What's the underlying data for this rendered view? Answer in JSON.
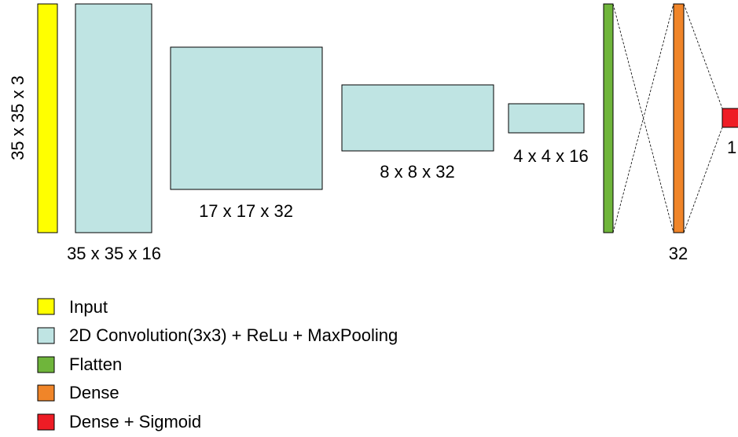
{
  "layers": [
    {
      "label": "35 x 35 x 3"
    },
    {
      "label": "35 x 35 x 16"
    },
    {
      "label": "17 x 17 x 32"
    },
    {
      "label": "8 x 8 x 32"
    },
    {
      "label": "4 x 4 x 16"
    },
    {
      "label": "32"
    },
    {
      "label": "1"
    }
  ],
  "legend": [
    {
      "label": "Input"
    },
    {
      "label": "2D Convolution(3x3) + ReLu + MaxPooling"
    },
    {
      "label": "Flatten"
    },
    {
      "label": "Dense"
    },
    {
      "label": "Dense + Sigmoid"
    }
  ]
}
